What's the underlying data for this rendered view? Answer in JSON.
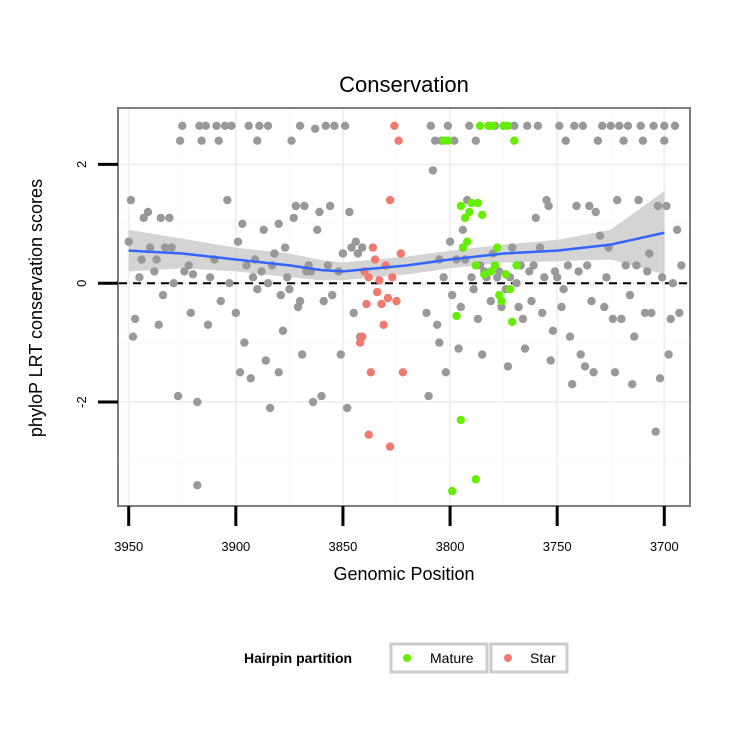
{
  "chart_data": {
    "type": "scatter",
    "title": "Conservation",
    "xlabel": "Genomic Position",
    "ylabel": "phyloP LRT conservation scores",
    "x_reversed": true,
    "xlim": [
      3955,
      3688
    ],
    "ylim": [
      -3.75,
      2.95
    ],
    "x_ticks": [
      3950,
      3900,
      3850,
      3800,
      3750,
      3700
    ],
    "x_tick_labels": [
      "3950",
      "3900",
      "3850",
      "3800",
      "3750",
      "3700"
    ],
    "y_ticks": [
      2,
      0,
      -2
    ],
    "y_tick_labels": [
      "2",
      "0",
      "-2"
    ],
    "reference_line": {
      "y": 0,
      "style": "dashed"
    },
    "colors": {
      "other": "#999999",
      "mature": "#66ee00",
      "star": "#f07a6e",
      "smooth": "#3366ff",
      "band": "#cccccc"
    },
    "legend": {
      "title": "Hairpin partition",
      "placement": "bottom",
      "entries": [
        {
          "label": "Mature",
          "color": "#66ee00"
        },
        {
          "label": "Star",
          "color": "#f07a6e"
        }
      ]
    },
    "series": [
      {
        "name": "Other",
        "points": [
          [
            3950,
            0.7
          ],
          [
            3949,
            1.4
          ],
          [
            3948,
            -0.9
          ],
          [
            3947,
            -0.6
          ],
          [
            3945,
            0.1
          ],
          [
            3944,
            0.4
          ],
          [
            3943,
            1.1
          ],
          [
            3941,
            1.2
          ],
          [
            3940,
            0.6
          ],
          [
            3938,
            0.2
          ],
          [
            3937,
            0.4
          ],
          [
            3936,
            -0.7
          ],
          [
            3935,
            1.1
          ],
          [
            3934,
            -0.2
          ],
          [
            3933,
            0.6
          ],
          [
            3931,
            1.1
          ],
          [
            3930,
            0.6
          ],
          [
            3929,
            0
          ],
          [
            3927,
            -1.9
          ],
          [
            3926,
            2.4
          ],
          [
            3925,
            2.65
          ],
          [
            3924,
            0.2
          ],
          [
            3922,
            0.3
          ],
          [
            3921,
            -0.5
          ],
          [
            3920,
            0.15
          ],
          [
            3918,
            -2
          ],
          [
            3917,
            2.65
          ],
          [
            3916,
            2.4
          ],
          [
            3914,
            2.65
          ],
          [
            3913,
            -0.7
          ],
          [
            3912,
            0.1
          ],
          [
            3910,
            0.4
          ],
          [
            3909,
            2.65
          ],
          [
            3908,
            2.4
          ],
          [
            3907,
            -0.3
          ],
          [
            3905,
            2.65
          ],
          [
            3904,
            1.4
          ],
          [
            3903,
            0
          ],
          [
            3902,
            2.65
          ],
          [
            3900,
            -0.5
          ],
          [
            3899,
            0.7
          ],
          [
            3898,
            -1.5
          ],
          [
            3897,
            1
          ],
          [
            3896,
            -1
          ],
          [
            3895,
            0.3
          ],
          [
            3894,
            2.65
          ],
          [
            3893,
            -1.6
          ],
          [
            3892,
            0.1
          ],
          [
            3891,
            0.4
          ],
          [
            3890,
            2.4
          ],
          [
            3889,
            2.65
          ],
          [
            3888,
            0.2
          ],
          [
            3887,
            0.9
          ],
          [
            3886,
            -1.3
          ],
          [
            3885,
            2.65
          ],
          [
            3884,
            -2.1
          ],
          [
            3883,
            0.3
          ],
          [
            3882,
            0.5
          ],
          [
            3880,
            1
          ],
          [
            3879,
            -0.2
          ],
          [
            3878,
            -0.8
          ],
          [
            3877,
            0.6
          ],
          [
            3876,
            0.1
          ],
          [
            3875,
            -0.1
          ],
          [
            3874,
            2.4
          ],
          [
            3873,
            1.1
          ],
          [
            3872,
            1.3
          ],
          [
            3871,
            -0.4
          ],
          [
            3870,
            2.65
          ],
          [
            3869,
            -1.2
          ],
          [
            3868,
            1.3
          ],
          [
            3867,
            0.2
          ],
          [
            3866,
            0.3
          ],
          [
            3865,
            0.2
          ],
          [
            3864,
            -2
          ],
          [
            3863,
            2.6
          ],
          [
            3862,
            0.9
          ],
          [
            3861,
            1.2
          ],
          [
            3860,
            -1.9
          ],
          [
            3859,
            -0.3
          ],
          [
            3858,
            2.65
          ],
          [
            3857,
            0.3
          ],
          [
            3856,
            1.3
          ],
          [
            3855,
            -0.2
          ],
          [
            3854,
            2.65
          ],
          [
            3852,
            0.2
          ],
          [
            3851,
            -1.2
          ],
          [
            3850,
            0.5
          ],
          [
            3849,
            2.65
          ],
          [
            3848,
            -2.1
          ],
          [
            3847,
            1.2
          ],
          [
            3846,
            0.6
          ],
          [
            3845,
            -0.5
          ],
          [
            3844,
            0.7
          ],
          [
            3843,
            0.5
          ],
          [
            3842,
            -0.9
          ],
          [
            3841,
            0.6
          ],
          [
            3811,
            -0.5
          ],
          [
            3809,
            2.65
          ],
          [
            3808,
            1.9
          ],
          [
            3807,
            2.4
          ],
          [
            3806,
            -0.7
          ],
          [
            3805,
            0.4
          ],
          [
            3804,
            2.4
          ],
          [
            3803,
            0.1
          ],
          [
            3802,
            -1.5
          ],
          [
            3801,
            2.65
          ],
          [
            3800,
            0.7
          ],
          [
            3799,
            -0.2
          ],
          [
            3798,
            2.4
          ],
          [
            3797,
            0.4
          ],
          [
            3796,
            -1.1
          ],
          [
            3795,
            -0.4
          ],
          [
            3794,
            0.9
          ],
          [
            3793,
            0.4
          ],
          [
            3792,
            1.4
          ],
          [
            3791,
            2.65
          ],
          [
            3790,
            0.1
          ],
          [
            3789,
            -0.1
          ],
          [
            3788,
            2.4
          ],
          [
            3787,
            -0.6
          ],
          [
            3786,
            0.3
          ],
          [
            3785,
            -1.2
          ],
          [
            3784,
            0.2
          ],
          [
            3783,
            0.1
          ],
          [
            3782,
            2.65
          ],
          [
            3781,
            -0.3
          ],
          [
            3780,
            0.5
          ],
          [
            3779,
            2.65
          ],
          [
            3778,
            0.1
          ],
          [
            3777,
            0.2
          ],
          [
            3776,
            -0.4
          ],
          [
            3775,
            2.65
          ],
          [
            3774,
            -0.1
          ],
          [
            3773,
            -1.4
          ],
          [
            3772,
            0.1
          ],
          [
            3771,
            0.6
          ],
          [
            3770,
            2.65
          ],
          [
            3769,
            0
          ],
          [
            3768,
            -0.4
          ],
          [
            3767,
            0.3
          ],
          [
            3766,
            -0.6
          ],
          [
            3765,
            -1.1
          ],
          [
            3764,
            2.65
          ],
          [
            3763,
            0.2
          ],
          [
            3762,
            -0.3
          ],
          [
            3761,
            0.3
          ],
          [
            3760,
            1.1
          ],
          [
            3759,
            2.65
          ],
          [
            3758,
            0.6
          ],
          [
            3757,
            -0.5
          ],
          [
            3756,
            0.1
          ],
          [
            3755,
            1.4
          ],
          [
            3754,
            1.3
          ],
          [
            3753,
            -1.3
          ],
          [
            3752,
            -0.8
          ],
          [
            3751,
            0.2
          ],
          [
            3750,
            0.1
          ],
          [
            3749,
            2.65
          ],
          [
            3748,
            -0.4
          ],
          [
            3747,
            -0.1
          ],
          [
            3746,
            2.4
          ],
          [
            3745,
            0.3
          ],
          [
            3744,
            -0.9
          ],
          [
            3743,
            -1.7
          ],
          [
            3742,
            2.65
          ],
          [
            3741,
            1.3
          ],
          [
            3740,
            0.2
          ],
          [
            3739,
            -1.2
          ],
          [
            3738,
            2.65
          ],
          [
            3737,
            -1.4
          ],
          [
            3736,
            0.3
          ],
          [
            3735,
            1.3
          ],
          [
            3734,
            -0.3
          ],
          [
            3733,
            -1.5
          ],
          [
            3732,
            1.2
          ],
          [
            3731,
            2.4
          ],
          [
            3730,
            0.8
          ],
          [
            3729,
            2.65
          ],
          [
            3728,
            -0.4
          ],
          [
            3727,
            0.1
          ],
          [
            3726,
            0.6
          ],
          [
            3725,
            2.65
          ],
          [
            3724,
            -0.6
          ],
          [
            3723,
            -1.5
          ],
          [
            3722,
            1.4
          ],
          [
            3721,
            2.65
          ],
          [
            3720,
            -0.6
          ],
          [
            3719,
            2.4
          ],
          [
            3718,
            0.3
          ],
          [
            3717,
            2.65
          ],
          [
            3716,
            -0.2
          ],
          [
            3715,
            -1.7
          ],
          [
            3714,
            -0.9
          ],
          [
            3713,
            0.3
          ],
          [
            3712,
            1.4
          ],
          [
            3711,
            2.65
          ],
          [
            3710,
            2.4
          ],
          [
            3709,
            -0.5
          ],
          [
            3708,
            0.2
          ],
          [
            3707,
            0.5
          ],
          [
            3706,
            -0.5
          ],
          [
            3705,
            2.65
          ],
          [
            3704,
            -2.5
          ],
          [
            3703,
            1.3
          ],
          [
            3702,
            -1.6
          ],
          [
            3701,
            0.1
          ],
          [
            3700,
            2.4
          ],
          [
            3699,
            1.3
          ],
          [
            3698,
            -1.2
          ],
          [
            3697,
            -0.6
          ],
          [
            3696,
            0
          ],
          [
            3695,
            2.65
          ],
          [
            3694,
            0.9
          ],
          [
            3693,
            -0.5
          ],
          [
            3692,
            0.3
          ],
          [
            3700,
            2.65
          ],
          [
            3918,
            -3.4
          ],
          [
            3890,
            -0.1
          ],
          [
            3880,
            -1.5
          ],
          [
            3870,
            -0.3
          ],
          [
            3810,
            -1.9
          ],
          [
            3805,
            -1.0
          ],
          [
            3885,
            0.0
          ]
        ]
      },
      {
        "name": "Mature",
        "points": [
          [
            3803,
            2.4
          ],
          [
            3801,
            2.4
          ],
          [
            3797,
            -0.55
          ],
          [
            3795,
            1.3
          ],
          [
            3794,
            0.6
          ],
          [
            3793,
            1.1
          ],
          [
            3792,
            0.7
          ],
          [
            3791,
            1.2
          ],
          [
            3790,
            1.35
          ],
          [
            3788,
            0.3
          ],
          [
            3787,
            1.35
          ],
          [
            3786,
            2.65
          ],
          [
            3785,
            1.15
          ],
          [
            3784,
            0.15
          ],
          [
            3782,
            2.65
          ],
          [
            3781,
            0.2
          ],
          [
            3780,
            2.65
          ],
          [
            3779,
            0.3
          ],
          [
            3778,
            0.6
          ],
          [
            3777,
            -0.2
          ],
          [
            3776,
            -0.3
          ],
          [
            3775,
            2.65
          ],
          [
            3774,
            0.15
          ],
          [
            3773,
            2.65
          ],
          [
            3772,
            -0.1
          ],
          [
            3771,
            -0.65
          ],
          [
            3770,
            2.4
          ],
          [
            3769,
            0.3
          ],
          [
            3795,
            -2.3
          ],
          [
            3799,
            -3.5
          ],
          [
            3788,
            -3.3
          ]
        ]
      },
      {
        "name": "Star",
        "points": [
          [
            3842,
            -1.0
          ],
          [
            3841,
            -0.9
          ],
          [
            3840,
            0.2
          ],
          [
            3839,
            -0.35
          ],
          [
            3838,
            0.1
          ],
          [
            3837,
            -1.5
          ],
          [
            3836,
            0.6
          ],
          [
            3835,
            0.4
          ],
          [
            3834,
            -0.15
          ],
          [
            3833,
            0.05
          ],
          [
            3832,
            -0.35
          ],
          [
            3831,
            -0.7
          ],
          [
            3830,
            0.3
          ],
          [
            3829,
            -0.25
          ],
          [
            3828,
            1.4
          ],
          [
            3827,
            0.1
          ],
          [
            3826,
            2.65
          ],
          [
            3825,
            -0.3
          ],
          [
            3824,
            2.4
          ],
          [
            3823,
            0.5
          ],
          [
            3822,
            -1.5
          ],
          [
            3838,
            -2.55
          ],
          [
            3828,
            -2.75
          ]
        ]
      }
    ],
    "smooth": [
      [
        3950,
        0.55
      ],
      [
        3925,
        0.5
      ],
      [
        3900,
        0.4
      ],
      [
        3875,
        0.3
      ],
      [
        3860,
        0.22
      ],
      [
        3850,
        0.2
      ],
      [
        3835,
        0.25
      ],
      [
        3820,
        0.3
      ],
      [
        3800,
        0.4
      ],
      [
        3775,
        0.5
      ],
      [
        3750,
        0.55
      ],
      [
        3725,
        0.65
      ],
      [
        3700,
        0.85
      ]
    ],
    "band_half_width": [
      [
        3950,
        0.35
      ],
      [
        3925,
        0.25
      ],
      [
        3900,
        0.2
      ],
      [
        3875,
        0.2
      ],
      [
        3850,
        0.15
      ],
      [
        3825,
        0.15
      ],
      [
        3800,
        0.15
      ],
      [
        3775,
        0.15
      ],
      [
        3750,
        0.18
      ],
      [
        3725,
        0.25
      ],
      [
        3700,
        0.7
      ]
    ]
  }
}
